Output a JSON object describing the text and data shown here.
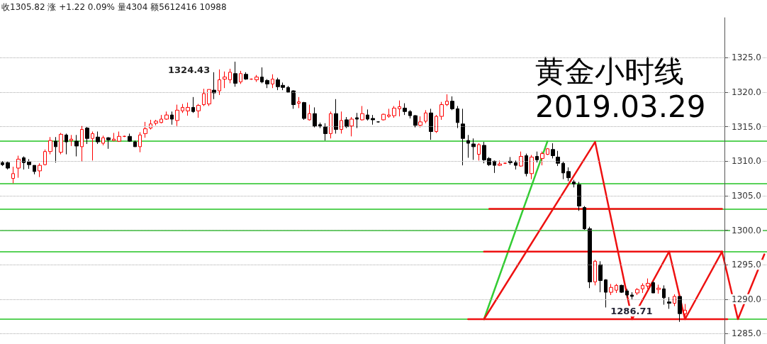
{
  "chart_data": {
    "type": "candlestick",
    "title": "黄金小时线",
    "subtitle": "2019.03.29",
    "annotations": [
      "收1305.82 涨 +1.22 0.09% 量4304 额5612416 10988",
      "1324.43",
      {
        "text": "1286.71",
        "y": 1286.71
      }
    ],
    "categories": [
      null,
      null,
      null,
      null,
      null,
      null,
      null,
      null,
      null,
      null,
      null,
      null,
      null,
      null,
      null,
      null,
      null,
      null,
      null,
      null,
      null,
      null,
      null,
      null,
      null,
      null,
      null,
      null,
      null,
      null,
      null,
      null,
      null,
      null,
      null,
      null,
      null,
      null,
      null,
      null,
      null,
      null,
      null,
      null,
      null,
      null,
      null,
      null,
      null,
      null,
      null,
      null,
      null,
      null,
      null,
      null,
      null,
      null,
      null,
      null,
      null,
      null,
      null,
      null,
      null,
      null,
      null,
      null,
      null,
      null,
      null,
      null,
      null,
      null,
      null,
      null,
      null,
      null,
      null,
      null,
      null,
      null,
      null,
      null,
      null,
      null,
      null,
      null,
      null,
      null,
      null,
      null,
      null,
      null,
      null,
      null,
      null,
      null,
      null,
      null,
      null,
      null,
      null,
      null,
      null,
      null,
      null,
      null,
      null,
      null,
      null,
      null,
      null,
      null,
      null,
      null,
      null,
      null,
      null,
      null,
      null,
      null,
      null,
      null,
      null,
      null,
      null,
      null,
      null,
      null,
      null,
      null,
      null,
      null,
      null,
      null,
      null,
      null,
      null,
      null,
      null,
      null,
      null,
      null,
      null
    ],
    "ohlc": [
      [
        1309.8,
        1310,
        1309.3,
        1309.5
      ],
      [
        1309.8,
        1310,
        1308.8,
        1309
      ],
      [
        1307.5,
        1309.2,
        1306.8,
        1308.2
      ],
      [
        1309,
        1310.8,
        1307.6,
        1310.3
      ],
      [
        1310.5,
        1310.7,
        1308.8,
        1309.8
      ],
      [
        1309.9,
        1310.3,
        1308.9,
        1309.5
      ],
      [
        1309.4,
        1309.4,
        1308.1,
        1308.5
      ],
      [
        1308.6,
        1309.7,
        1307.7,
        1309.4
      ],
      [
        1309.5,
        1311.7,
        1309.4,
        1311.4
      ],
      [
        1311.4,
        1313.5,
        1311,
        1313
      ],
      [
        1312.9,
        1313.5,
        1309.8,
        1312.1
      ],
      [
        1311.3,
        1314.1,
        1311,
        1313.9
      ],
      [
        1313.8,
        1314,
        1311,
        1312.8
      ],
      [
        1313,
        1313.8,
        1312.2,
        1313.2
      ],
      [
        1312.9,
        1313.8,
        1310.7,
        1312.2
      ],
      [
        1312.1,
        1315.1,
        1310,
        1314.6
      ],
      [
        1314.8,
        1315,
        1312.5,
        1313.3
      ],
      [
        1313.3,
        1314.3,
        1310.1,
        1314
      ],
      [
        1313.5,
        1314.3,
        1312.5,
        1312.8
      ],
      [
        1312.6,
        1313.7,
        1312.3,
        1313.4
      ],
      [
        1313.4,
        1313.5,
        1311.8,
        1313.1
      ],
      [
        1313,
        1314.1,
        1312.9,
        1313.2
      ],
      [
        1312.9,
        1314.3,
        1312.8,
        1313.6
      ],
      [
        1313.6,
        1313.7,
        1313.5,
        1313.6
      ],
      [
        1313.6,
        1314,
        1312.8,
        1312.9
      ],
      [
        1312.8,
        1313,
        1312.1,
        1312.1
      ],
      [
        1312.1,
        1314.2,
        1311.3,
        1313.8
      ],
      [
        1314,
        1315.7,
        1313.4,
        1314.7
      ],
      [
        1314.8,
        1316,
        1314.6,
        1315.4
      ],
      [
        1315.5,
        1316,
        1315.2,
        1315.8
      ],
      [
        1315.6,
        1316.7,
        1315.5,
        1316.1
      ],
      [
        1316.1,
        1317.2,
        1316,
        1316.7
      ],
      [
        1316.7,
        1317.2,
        1315.3,
        1316.1
      ],
      [
        1315.9,
        1318.2,
        1315.1,
        1317.4
      ],
      [
        1317.3,
        1318.3,
        1317,
        1317.8
      ],
      [
        1317.3,
        1318.5,
        1316.6,
        1317.8
      ],
      [
        1317.8,
        1319.3,
        1317,
        1317.2
      ],
      [
        1317.3,
        1318.3,
        1316.3,
        1318.1
      ],
      [
        1318.2,
        1320.5,
        1318,
        1319.8
      ],
      [
        1318.3,
        1320.4,
        1318,
        1320.4
      ],
      [
        1320.3,
        1322.9,
        1319,
        1319.9
      ],
      [
        1320.2,
        1323.3,
        1319.6,
        1321.8
      ],
      [
        1321.9,
        1323,
        1320.6,
        1322.2
      ],
      [
        1321.8,
        1323.4,
        1321.3,
        1322.9
      ],
      [
        1322.7,
        1324.43,
        1320.8,
        1321.3
      ],
      [
        1321.5,
        1323.1,
        1321.2,
        1322.7
      ],
      [
        1322.6,
        1322.9,
        1321.8,
        1321.9
      ],
      [
        1321.9,
        1322,
        1321.8,
        1321.9
      ],
      [
        1321.8,
        1322.5,
        1321.5,
        1322.2
      ],
      [
        1322.2,
        1323.6,
        1321.3,
        1321.5
      ],
      [
        1321.7,
        1321.9,
        1320.6,
        1321.2
      ],
      [
        1321.2,
        1322.6,
        1320.6,
        1321.9
      ],
      [
        1321.8,
        1322.1,
        1320.3,
        1320.8
      ],
      [
        1321,
        1321.4,
        1320.3,
        1320.7
      ],
      [
        1320.7,
        1320.9,
        1319.9,
        1320
      ],
      [
        1320.2,
        1320.3,
        1317.6,
        1318.2
      ],
      [
        1318.4,
        1319.3,
        1317.7,
        1318.6
      ],
      [
        1318.5,
        1318.6,
        1316,
        1316.2
      ],
      [
        1316,
        1318.2,
        1315.9,
        1316.9
      ],
      [
        1316.9,
        1317.8,
        1314.9,
        1315.1
      ],
      [
        1315.3,
        1315.6,
        1314.8,
        1315.1
      ],
      [
        1315,
        1315.5,
        1313,
        1314
      ],
      [
        1314,
        1317.2,
        1313.3,
        1316.9
      ],
      [
        1316.9,
        1319,
        1314,
        1314.6
      ],
      [
        1314.6,
        1317.2,
        1314,
        1315.9
      ],
      [
        1316,
        1316.4,
        1314.8,
        1315
      ],
      [
        1315.1,
        1316.4,
        1313.6,
        1316.1
      ],
      [
        1316.3,
        1317,
        1314.8,
        1316.1
      ],
      [
        1316,
        1318,
        1315.9,
        1316.9
      ],
      [
        1316.7,
        1317.5,
        1315.9,
        1316.1
      ],
      [
        1316.2,
        1316.7,
        1315.3,
        1316
      ],
      [
        1315.7,
        1315.8,
        1315.6,
        1315.7
      ],
      [
        1316,
        1316.9,
        1315.9,
        1316.8
      ],
      [
        1316.5,
        1317.6,
        1316.3,
        1316.7
      ],
      [
        1316.6,
        1318,
        1316.3,
        1317.7
      ],
      [
        1317.6,
        1318.8,
        1316.5,
        1317.9
      ],
      [
        1317.7,
        1318.4,
        1316.7,
        1317.2
      ],
      [
        1317.2,
        1317.4,
        1316.2,
        1316.6
      ],
      [
        1316.6,
        1316.7,
        1314.9,
        1315.2
      ],
      [
        1315.2,
        1316.5,
        1314.9,
        1315.7
      ],
      [
        1315.8,
        1317.4,
        1315.5,
        1317
      ],
      [
        1317,
        1317.6,
        1313.1,
        1314.3
      ],
      [
        1314.3,
        1316.7,
        1314.1,
        1316.5
      ],
      [
        1316.5,
        1318.6,
        1316,
        1318.2
      ],
      [
        1318.2,
        1319.7,
        1318,
        1318.7
      ],
      [
        1318.7,
        1319.4,
        1317.4,
        1317.6
      ],
      [
        1317.6,
        1318,
        1314.8,
        1315.6
      ],
      [
        1315.4,
        1317.6,
        1309.4,
        1313.3
      ],
      [
        1313,
        1313.8,
        1310.5,
        1312.6
      ],
      [
        1312.5,
        1313.3,
        1310.2,
        1312.1
      ],
      [
        1311,
        1312.6,
        1310.1,
        1312.4
      ],
      [
        1312.3,
        1312.8,
        1309.7,
        1310.2
      ],
      [
        1310.4,
        1310.6,
        1309.3,
        1309.5
      ],
      [
        1310,
        1310.1,
        1308.3,
        1309.4
      ],
      [
        1309.4,
        1310.1,
        1309.3,
        1309.6
      ],
      [
        1309.7,
        1309.8,
        1309.6,
        1309.7
      ],
      [
        1310,
        1310.6,
        1309.5,
        1309.8
      ],
      [
        1309.8,
        1310.1,
        1308.8,
        1309.4
      ],
      [
        1309.3,
        1311.4,
        1309.2,
        1310.7
      ],
      [
        1310.8,
        1311.1,
        1307.8,
        1308.2
      ],
      [
        1308.2,
        1310.9,
        1307.4,
        1310.6
      ],
      [
        1310.7,
        1311.4,
        1309.8,
        1310.2
      ],
      [
        1310.4,
        1311.4,
        1309.4,
        1311.1
      ],
      [
        1311,
        1311.9,
        1310.9,
        1311.8
      ],
      [
        1311.7,
        1312.6,
        1310.4,
        1310.8
      ],
      [
        1310.6,
        1311.5,
        1309.3,
        1309.7
      ],
      [
        1309.7,
        1310,
        1307.4,
        1308.3
      ],
      [
        1308.5,
        1309.1,
        1307.1,
        1307.6
      ],
      [
        1307,
        1307.3,
        1306.2,
        1306.7
      ],
      [
        1306.6,
        1307,
        1302.8,
        1303.5
      ],
      [
        1303.3,
        1303.5,
        1300,
        1300.2
      ],
      [
        1300.2,
        1300.5,
        1291.6,
        1292.5
      ],
      [
        1292.5,
        1295.7,
        1292,
        1295.5
      ],
      [
        1295,
        1295.5,
        1291,
        1292.7
      ],
      [
        1292.8,
        1292.9,
        1288.8,
        1291
      ],
      [
        1291,
        1292.2,
        1290.6,
        1291.7
      ],
      [
        1291.3,
        1292.2,
        1290.9,
        1292
      ],
      [
        1292,
        1292.1,
        1290.9,
        1291
      ],
      [
        1291.2,
        1291.5,
        1290.2,
        1290.6
      ],
      [
        1290.6,
        1291.0,
        1290.0,
        1290.4
      ],
      [
        1290.9,
        1291.6,
        1290.6,
        1291.4
      ],
      [
        1291.5,
        1292.3,
        1290.9,
        1292
      ],
      [
        1291.9,
        1293,
        1291.5,
        1292.3
      ],
      [
        1292.4,
        1292.6,
        1290.9,
        1290.9
      ],
      [
        1291.4,
        1292.1,
        1290.8,
        1291.6
      ],
      [
        1291.5,
        1292,
        1289.2,
        1290.2
      ],
      [
        1289.6,
        1290.3,
        1288.6,
        1289.4
      ],
      [
        1289.4,
        1290.7,
        1289,
        1290.4
      ],
      [
        1290.4,
        1290.4,
        1286.71,
        1287.9
      ],
      [
        1287.9,
        1289.3,
        1287.5,
        1288.4
      ],
      null,
      null,
      null,
      null,
      null,
      null,
      null,
      null,
      null,
      null,
      null,
      null,
      null,
      null,
      null
    ],
    "series": [
      {
        "type": "line",
        "color": "#33cc33",
        "values": [
          null,
          null,
          null,
          null,
          null,
          null,
          null,
          null,
          null,
          null,
          null,
          null,
          null,
          null,
          null,
          null,
          null,
          null,
          null,
          null,
          null,
          null,
          null,
          null,
          null,
          null,
          null,
          null,
          null,
          null,
          null,
          null,
          null,
          null,
          null,
          null,
          null,
          null,
          null,
          null,
          null,
          null,
          null,
          null,
          null,
          null,
          null,
          null,
          null,
          null,
          null,
          null,
          null,
          null,
          null,
          null,
          null,
          null,
          null,
          null,
          null,
          null,
          null,
          null,
          null,
          null,
          null,
          null,
          null,
          null,
          null,
          null,
          null,
          null,
          null,
          null,
          null,
          null,
          null,
          null,
          null,
          null,
          null,
          null,
          null,
          null,
          null,
          null,
          null,
          null,
          null,
          1287.1,
          null,
          null,
          null,
          null,
          null,
          null,
          null,
          null,
          null,
          null,
          null,
          1312.9,
          null,
          null,
          null,
          null,
          null,
          null,
          null,
          null,
          null,
          null,
          null,
          null,
          null,
          null,
          null,
          null,
          null,
          null,
          null,
          null,
          null,
          null,
          null,
          null,
          null,
          null,
          null,
          null,
          null,
          null,
          null,
          null,
          null,
          null,
          null,
          null,
          null,
          null,
          null,
          null,
          null
        ]
      },
      {
        "type": "line",
        "color": "#ee1111",
        "values": [
          null,
          null,
          null,
          null,
          null,
          null,
          null,
          null,
          null,
          null,
          null,
          null,
          null,
          null,
          null,
          null,
          null,
          null,
          null,
          null,
          null,
          null,
          null,
          null,
          null,
          null,
          null,
          null,
          null,
          null,
          null,
          null,
          null,
          null,
          null,
          null,
          null,
          null,
          null,
          null,
          null,
          null,
          null,
          null,
          null,
          null,
          null,
          null,
          null,
          null,
          null,
          null,
          null,
          null,
          null,
          null,
          null,
          null,
          null,
          null,
          null,
          null,
          null,
          null,
          null,
          null,
          null,
          null,
          null,
          null,
          null,
          null,
          null,
          null,
          null,
          null,
          null,
          null,
          null,
          null,
          null,
          null,
          null,
          null,
          null,
          null,
          null,
          null,
          null,
          null,
          null,
          1287.1,
          null,
          null,
          null,
          null,
          null,
          null,
          null,
          null,
          null,
          null,
          null,
          null,
          null,
          null,
          null,
          null,
          null,
          null,
          null,
          null,
          1312.8,
          null,
          null,
          null,
          null,
          null,
          null,
          1287.1,
          null,
          null,
          null,
          null,
          null,
          null,
          1296.9,
          null,
          null,
          1287.1,
          null,
          null,
          null,
          null,
          null,
          null,
          1296.9,
          null,
          null,
          1287.1,
          null,
          null,
          null,
          null,
          1296.5
        ]
      },
      {
        "type": "line",
        "color": "#ee1111",
        "values": [
          null,
          null,
          null,
          null,
          null,
          null,
          null,
          null,
          null,
          null,
          null,
          null,
          null,
          null,
          null,
          null,
          null,
          null,
          null,
          null,
          null,
          null,
          null,
          null,
          null,
          null,
          null,
          null,
          null,
          null,
          null,
          null,
          null,
          null,
          null,
          null,
          null,
          null,
          null,
          null,
          null,
          null,
          null,
          null,
          null,
          null,
          null,
          null,
          null,
          null,
          null,
          null,
          null,
          null,
          null,
          null,
          null,
          null,
          null,
          null,
          null,
          null,
          null,
          null,
          null,
          null,
          null,
          null,
          null,
          null,
          null,
          null,
          null,
          null,
          null,
          null,
          null,
          null,
          null,
          null,
          null,
          null,
          null,
          null,
          null,
          null,
          null,
          null,
          null,
          null,
          null,
          null,
          1303.1,
          null,
          null,
          null,
          null,
          null,
          null,
          null,
          null,
          null,
          null,
          null,
          null,
          null,
          null,
          null,
          null,
          null,
          null,
          null,
          null,
          null,
          null,
          null,
          null,
          null,
          null,
          null,
          null,
          null,
          null,
          null,
          null,
          null,
          null,
          null,
          null,
          null,
          null,
          null,
          null,
          null,
          null,
          null,
          1303.1,
          null,
          null,
          null,
          null,
          null,
          null,
          null,
          null
        ]
      },
      {
        "type": "line",
        "color": "#ee1111",
        "values": [
          null,
          null,
          null,
          null,
          null,
          null,
          null,
          null,
          null,
          null,
          null,
          null,
          null,
          null,
          null,
          null,
          null,
          null,
          null,
          null,
          null,
          null,
          null,
          null,
          null,
          null,
          null,
          null,
          null,
          null,
          null,
          null,
          null,
          null,
          null,
          null,
          null,
          null,
          null,
          null,
          null,
          null,
          null,
          null,
          null,
          null,
          null,
          null,
          null,
          null,
          null,
          null,
          null,
          null,
          null,
          null,
          null,
          null,
          null,
          null,
          null,
          null,
          null,
          null,
          null,
          null,
          null,
          null,
          null,
          null,
          null,
          null,
          null,
          null,
          null,
          null,
          null,
          null,
          null,
          null,
          null,
          null,
          null,
          null,
          null,
          null,
          null,
          null,
          null,
          null,
          null,
          1296.9,
          null,
          null,
          null,
          null,
          null,
          null,
          null,
          null,
          null,
          null,
          null,
          null,
          null,
          null,
          null,
          null,
          null,
          null,
          null,
          null,
          null,
          null,
          null,
          null,
          null,
          null,
          null,
          null,
          null,
          null,
          null,
          null,
          null,
          null,
          null,
          null,
          null,
          null,
          null,
          null,
          null,
          null,
          null,
          null,
          1296.9,
          null,
          null,
          null,
          null,
          null,
          null,
          null,
          null
        ]
      },
      {
        "type": "line",
        "color": "#ee1111",
        "values": [
          null,
          null,
          null,
          null,
          null,
          null,
          null,
          null,
          null,
          null,
          null,
          null,
          null,
          null,
          null,
          null,
          null,
          null,
          null,
          null,
          null,
          null,
          null,
          null,
          null,
          null,
          null,
          null,
          null,
          null,
          null,
          null,
          null,
          null,
          null,
          null,
          null,
          null,
          null,
          null,
          null,
          null,
          null,
          null,
          null,
          null,
          null,
          null,
          null,
          null,
          null,
          null,
          null,
          null,
          null,
          null,
          null,
          null,
          null,
          null,
          null,
          null,
          null,
          null,
          null,
          null,
          null,
          null,
          null,
          null,
          null,
          null,
          null,
          null,
          null,
          null,
          null,
          null,
          null,
          null,
          null,
          null,
          null,
          null,
          null,
          null,
          null,
          null,
          1287.1,
          null,
          null,
          null,
          null,
          null,
          null,
          null,
          null,
          null,
          null,
          null,
          null,
          null,
          null,
          null,
          null,
          null,
          null,
          null,
          null,
          null,
          null,
          null,
          null,
          null,
          null,
          null,
          null,
          null,
          null,
          null,
          null,
          null,
          null,
          null,
          null,
          null,
          null,
          null,
          null,
          null,
          null,
          null,
          null,
          null,
          null,
          null,
          null,
          1287.1,
          null,
          null,
          null,
          null,
          null,
          null,
          null
        ]
      }
    ],
    "ref_lines": [
      {
        "axis": "y",
        "value": 1312.9,
        "color": "#22c322"
      },
      {
        "axis": "y",
        "value": 1306.8,
        "color": "#22c322"
      },
      {
        "axis": "y",
        "value": 1303.1,
        "color": "#22c322"
      },
      {
        "axis": "y",
        "value": 1300.0,
        "color": "#22c322"
      },
      {
        "axis": "y",
        "value": 1296.9,
        "color": "#22c322"
      },
      {
        "axis": "y",
        "value": 1287.1,
        "color": "#22c322"
      }
    ],
    "ylim": [
      1283.5,
      1330.8
    ],
    "yticks": [
      {
        "value": 1285,
        "label": "1285.0"
      },
      {
        "value": 1290,
        "label": "1290.0"
      },
      {
        "value": 1295,
        "label": "1295.0"
      },
      {
        "value": 1300,
        "label": "1300.0"
      },
      {
        "value": 1305,
        "label": "1305.0"
      },
      {
        "value": 1310,
        "label": "1310.0"
      },
      {
        "value": 1315,
        "label": "1315.0"
      },
      {
        "value": 1320,
        "label": "1320.0"
      },
      {
        "value": 1325,
        "label": "1325.0"
      }
    ],
    "grid": "y",
    "tick_labels": "y"
  }
}
